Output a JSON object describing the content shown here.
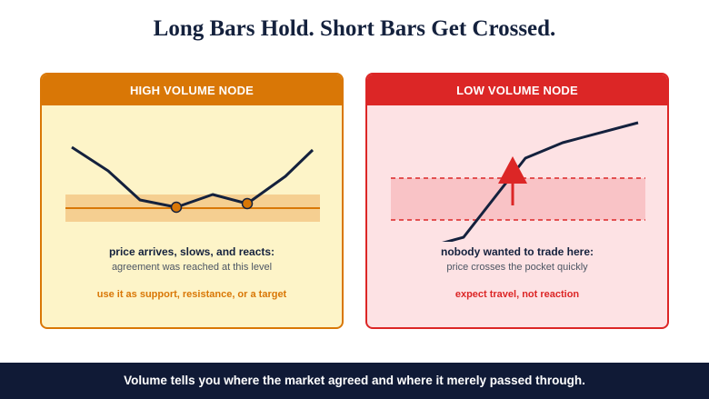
{
  "title": "Long Bars Hold. Short Bars Get Crossed.",
  "panels": {
    "high": {
      "header": "HIGH VOLUME NODE",
      "headline": "price arrives, slows, and reacts:",
      "detail": "agreement was reached at this level",
      "takeaway": "use it as support, resistance, or a target"
    },
    "low": {
      "header": "LOW VOLUME NODE",
      "headline": "nobody wanted to trade here:",
      "detail": "price crosses the pocket quickly",
      "takeaway": "expect travel, not reaction"
    }
  },
  "footer": "Volume tells you where the market agreed and where it merely passed through.",
  "colors": {
    "high_accent": "#d97706",
    "low_accent": "#dc2626",
    "navy": "#14213d"
  }
}
